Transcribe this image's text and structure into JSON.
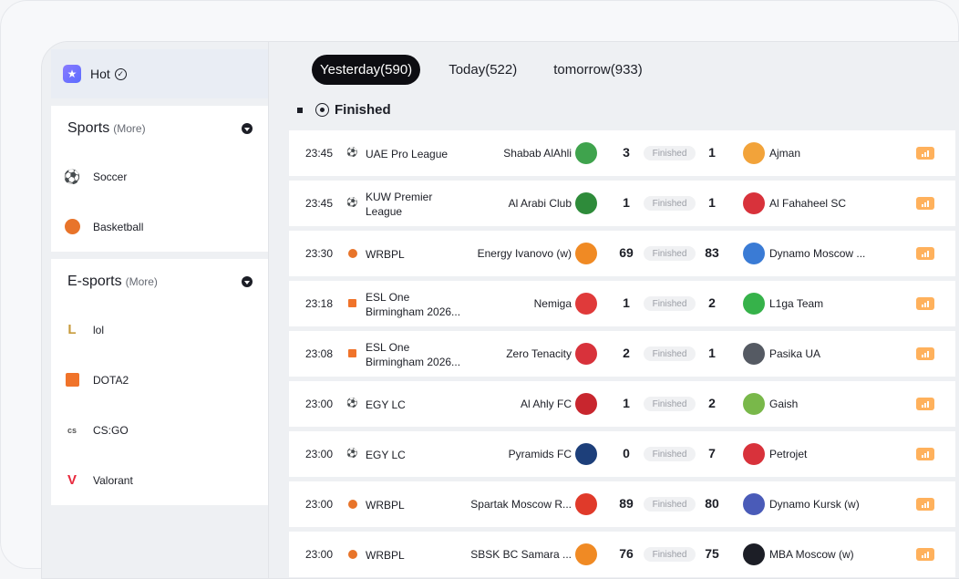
{
  "sidebar": {
    "hot_label": "Hot",
    "sports": {
      "title": "Sports",
      "more": "(More)",
      "items": [
        {
          "label": "Soccer",
          "icon": "soccer-ball-icon"
        },
        {
          "label": "Basketball",
          "icon": "basketball-icon"
        }
      ]
    },
    "esports": {
      "title": "E-sports",
      "more": "(More)",
      "items": [
        {
          "label": "lol",
          "icon": "lol-icon"
        },
        {
          "label": "DOTA2",
          "icon": "dota2-icon"
        },
        {
          "label": "CS:GO",
          "icon": "csgo-icon"
        },
        {
          "label": "Valorant",
          "icon": "valorant-icon"
        }
      ]
    }
  },
  "tabs": [
    {
      "label": "Yesterday(590)",
      "active": true
    },
    {
      "label": "Today(522)",
      "active": false
    },
    {
      "label": "tomorrow(933)",
      "active": false
    }
  ],
  "section_label": "Finished",
  "matches": [
    {
      "time": "23:45",
      "league_icon": "soccer-icon",
      "league": "UAE Pro League",
      "home": "Shabab AlAhli",
      "home_score": "3",
      "status": "Finished",
      "away_score": "1",
      "away": "Ajman",
      "home_color": "#3fa34d",
      "away_color": "#f2a33a"
    },
    {
      "time": "23:45",
      "league_icon": "soccer-icon",
      "league": "KUW Premier League",
      "home": "Al Arabi Club",
      "home_score": "1",
      "status": "Finished",
      "away_score": "1",
      "away": "Al Fahaheel SC",
      "home_color": "#2e8b3a",
      "away_color": "#d8323b"
    },
    {
      "time": "23:30",
      "league_icon": "basketball-icon",
      "league": "WRBPL",
      "home": "Energy Ivanovo (w)",
      "home_score": "69",
      "status": "Finished",
      "away_score": "83",
      "away": "Dynamo Moscow ...",
      "home_color": "#f08a24",
      "away_color": "#3a7bd5"
    },
    {
      "time": "23:18",
      "league_icon": "dota2-icon",
      "league": "ESL One Birmingham 2026...",
      "home": "Nemiga",
      "home_score": "1",
      "status": "Finished",
      "away_score": "2",
      "away": "L1ga Team",
      "home_color": "#e03a3a",
      "away_color": "#36b24a"
    },
    {
      "time": "23:08",
      "league_icon": "dota2-icon",
      "league": "ESL One Birmingham 2026...",
      "home": "Zero Tenacity",
      "home_score": "2",
      "status": "Finished",
      "away_score": "1",
      "away": "Pasika UA",
      "home_color": "#d8323b",
      "away_color": "#555a63"
    },
    {
      "time": "23:00",
      "league_icon": "soccer-icon",
      "league": "EGY LC",
      "home": "Al Ahly FC",
      "home_score": "1",
      "status": "Finished",
      "away_score": "2",
      "away": "Gaish",
      "home_color": "#c8262e",
      "away_color": "#79b84a"
    },
    {
      "time": "23:00",
      "league_icon": "soccer-icon",
      "league": "EGY LC",
      "home": "Pyramids FC",
      "home_score": "0",
      "status": "Finished",
      "away_score": "7",
      "away": "Petrojet",
      "home_color": "#1d3f7a",
      "away_color": "#d8323b"
    },
    {
      "time": "23:00",
      "league_icon": "basketball-icon",
      "league": "WRBPL",
      "home": "Spartak Moscow R...",
      "home_score": "89",
      "status": "Finished",
      "away_score": "80",
      "away": "Dynamo Kursk (w)",
      "home_color": "#e03a2a",
      "away_color": "#4a5bb8"
    },
    {
      "time": "23:00",
      "league_icon": "basketball-icon",
      "league": "WRBPL",
      "home": "SBSK BC Samara ...",
      "home_score": "76",
      "status": "Finished",
      "away_score": "75",
      "away": "MBA Moscow (w)",
      "home_color": "#f08a24",
      "away_color": "#1c1e26"
    }
  ]
}
